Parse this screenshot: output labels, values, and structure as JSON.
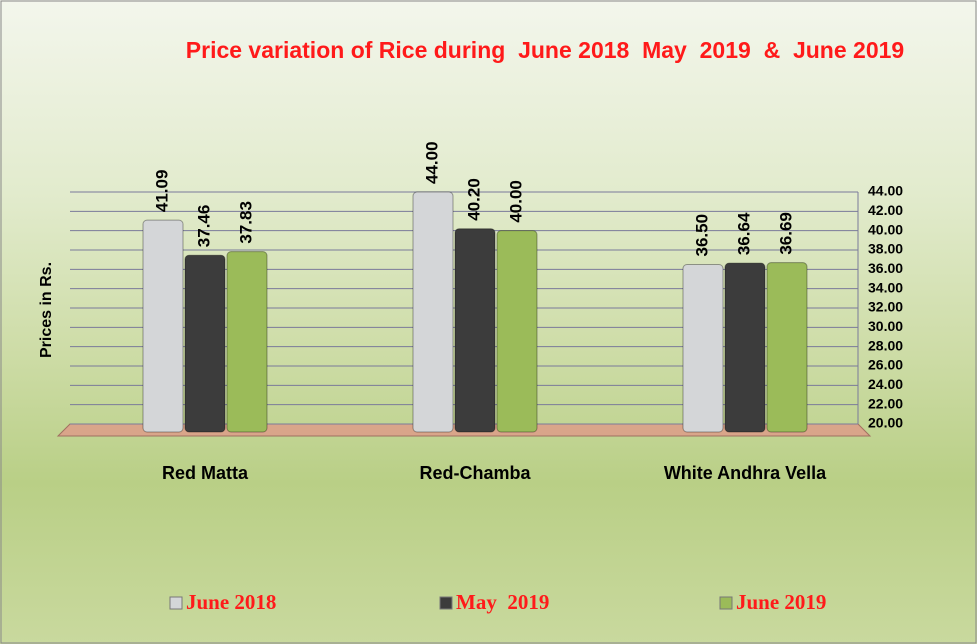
{
  "chart_data": {
    "type": "bar",
    "title": "Price variation of Rice during  June 2018  May  2019  &  June 2019",
    "y_label": "Prices in Rs.",
    "categories": [
      "Red Matta",
      "Red-Chamba",
      "White Andhra Vella"
    ],
    "series": [
      {
        "name": "June 2018",
        "color": "#d4d6d8",
        "values": [
          41.09,
          44.0,
          36.5
        ],
        "value_labels": [
          "41.09",
          "44.00",
          "36.50"
        ]
      },
      {
        "name": "May  2019",
        "color": "#3c3c3c",
        "values": [
          37.46,
          40.2,
          36.64
        ],
        "value_labels": [
          "37.46",
          "40.20",
          "36.64"
        ]
      },
      {
        "name": "June 2019",
        "color": "#9bbb59",
        "values": [
          37.83,
          40.0,
          36.69
        ],
        "value_labels": [
          "37.83",
          "40.00",
          "36.69"
        ]
      }
    ],
    "ylim": [
      20,
      44
    ],
    "yticks": [
      {
        "value": 20,
        "label": "20.00"
      },
      {
        "value": 22,
        "label": "22.00"
      },
      {
        "value": 24,
        "label": "24.00"
      },
      {
        "value": 26,
        "label": "26.00"
      },
      {
        "value": 28,
        "label": "28.00"
      },
      {
        "value": 30,
        "label": "30.00"
      },
      {
        "value": 32,
        "label": "32.00"
      },
      {
        "value": 34,
        "label": "34.00"
      },
      {
        "value": 36,
        "label": "36.00"
      },
      {
        "value": 38,
        "label": "38.00"
      },
      {
        "value": 40,
        "label": "40.00"
      },
      {
        "value": 42,
        "label": "42.00"
      },
      {
        "value": 44,
        "label": "44.00"
      }
    ],
    "grid": true
  }
}
